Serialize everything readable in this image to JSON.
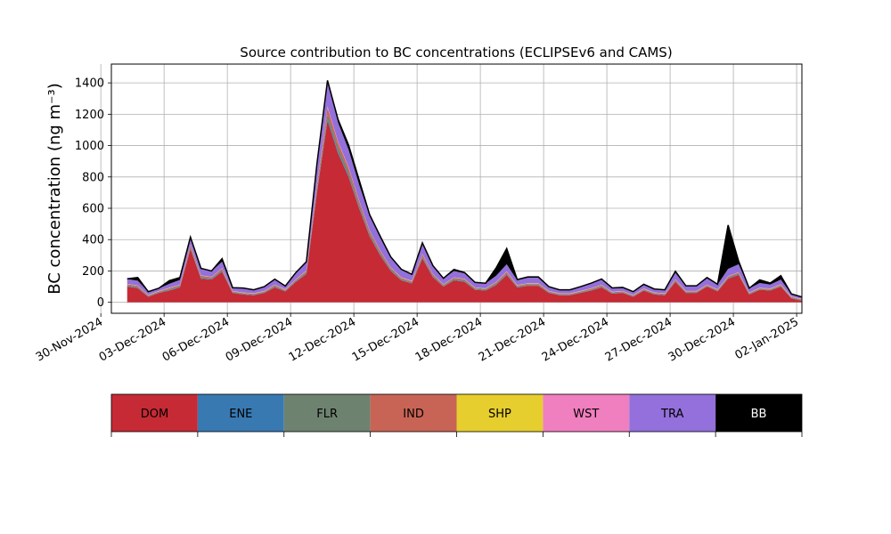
{
  "chart_data": {
    "type": "area",
    "title": "Source contribution to BC concentrations (ECLIPSEv6 and CAMS)",
    "ylabel": "BC concentration (ng m⁻³)",
    "xlabel": "",
    "ylim": [
      -70,
      1520
    ],
    "yticks": [
      0,
      200,
      400,
      600,
      800,
      1000,
      1200,
      1400
    ],
    "xlim": [
      "2024-11-30T12:00",
      "2025-01-02T06:00"
    ],
    "xticks": [
      {
        "date": "2024-11-30",
        "label": "30-Nov-2024"
      },
      {
        "date": "2024-12-03",
        "label": "03-Dec-2024"
      },
      {
        "date": "2024-12-06",
        "label": "06-Dec-2024"
      },
      {
        "date": "2024-12-09",
        "label": "09-Dec-2024"
      },
      {
        "date": "2024-12-12",
        "label": "12-Dec-2024"
      },
      {
        "date": "2024-12-15",
        "label": "15-Dec-2024"
      },
      {
        "date": "2024-12-18",
        "label": "18-Dec-2024"
      },
      {
        "date": "2024-12-21",
        "label": "21-Dec-2024"
      },
      {
        "date": "2024-12-24",
        "label": "24-Dec-2024"
      },
      {
        "date": "2024-12-27",
        "label": "27-Dec-2024"
      },
      {
        "date": "2024-12-30",
        "label": "30-Dec-2024"
      },
      {
        "date": "2025-01-02",
        "label": "02-Jan-2025"
      }
    ],
    "grid": true,
    "legend_position": "bottom",
    "x": [
      "2024-12-01T06:00",
      "2024-12-01T18:00",
      "2024-12-02T06:00",
      "2024-12-02T18:00",
      "2024-12-03T06:00",
      "2024-12-03T18:00",
      "2024-12-04T06:00",
      "2024-12-04T18:00",
      "2024-12-05T06:00",
      "2024-12-05T18:00",
      "2024-12-06T06:00",
      "2024-12-06T18:00",
      "2024-12-07T06:00",
      "2024-12-07T18:00",
      "2024-12-08T06:00",
      "2024-12-08T18:00",
      "2024-12-09T06:00",
      "2024-12-09T18:00",
      "2024-12-10T06:00",
      "2024-12-10T18:00",
      "2024-12-11T06:00",
      "2024-12-11T18:00",
      "2024-12-12T06:00",
      "2024-12-12T18:00",
      "2024-12-13T06:00",
      "2024-12-13T18:00",
      "2024-12-14T06:00",
      "2024-12-14T18:00",
      "2024-12-15T06:00",
      "2024-12-15T18:00",
      "2024-12-16T06:00",
      "2024-12-16T18:00",
      "2024-12-17T06:00",
      "2024-12-17T18:00",
      "2024-12-18T06:00",
      "2024-12-18T18:00",
      "2024-12-19T06:00",
      "2024-12-19T18:00",
      "2024-12-20T06:00",
      "2024-12-20T18:00",
      "2024-12-21T06:00",
      "2024-12-21T18:00",
      "2024-12-22T06:00",
      "2024-12-22T18:00",
      "2024-12-23T06:00",
      "2024-12-23T18:00",
      "2024-12-24T06:00",
      "2024-12-24T18:00",
      "2024-12-25T06:00",
      "2024-12-25T18:00",
      "2024-12-26T06:00",
      "2024-12-26T18:00",
      "2024-12-27T06:00",
      "2024-12-27T18:00",
      "2024-12-28T06:00",
      "2024-12-28T18:00",
      "2024-12-29T06:00",
      "2024-12-29T18:00",
      "2024-12-30T06:00",
      "2024-12-30T18:00",
      "2024-12-31T06:00",
      "2024-12-31T18:00",
      "2025-01-01T06:00",
      "2025-01-01T18:00",
      "2025-01-02T06:00"
    ],
    "series": [
      {
        "name": "DOM",
        "color": "#c62a35",
        "values": [
          100,
          90,
          35,
          60,
          75,
          95,
          340,
          150,
          145,
          195,
          60,
          50,
          45,
          60,
          95,
          70,
          130,
          180,
          700,
          1160,
          950,
          800,
          600,
          420,
          300,
          200,
          140,
          120,
          280,
          160,
          100,
          140,
          130,
          80,
          75,
          110,
          175,
          95,
          105,
          105,
          60,
          45,
          45,
          60,
          75,
          95,
          55,
          60,
          35,
          75,
          50,
          45,
          130,
          60,
          60,
          100,
          70,
          150,
          175,
          50,
          80,
          75,
          100,
          25,
          10
        ]
      },
      {
        "name": "ENE",
        "color": "#3979b2",
        "values": [
          3,
          3,
          2,
          2,
          3,
          3,
          5,
          4,
          3,
          4,
          2,
          2,
          2,
          2,
          3,
          2,
          3,
          4,
          8,
          12,
          10,
          8,
          6,
          5,
          4,
          3,
          2,
          2,
          4,
          3,
          2,
          3,
          3,
          2,
          2,
          3,
          3,
          2,
          2,
          2,
          2,
          2,
          2,
          2,
          2,
          2,
          2,
          2,
          2,
          2,
          2,
          2,
          3,
          2,
          2,
          2,
          2,
          3,
          3,
          2,
          2,
          2,
          2,
          2,
          2
        ]
      },
      {
        "name": "FLR",
        "color": "#6e8270",
        "values": [
          6,
          6,
          4,
          4,
          6,
          6,
          10,
          8,
          6,
          8,
          4,
          4,
          4,
          4,
          6,
          4,
          6,
          8,
          20,
          30,
          30,
          25,
          20,
          15,
          12,
          10,
          8,
          6,
          10,
          8,
          6,
          8,
          8,
          6,
          6,
          8,
          8,
          6,
          6,
          6,
          4,
          4,
          4,
          4,
          5,
          6,
          4,
          4,
          4,
          4,
          4,
          4,
          6,
          4,
          4,
          4,
          4,
          6,
          6,
          4,
          4,
          4,
          5,
          4,
          4
        ]
      },
      {
        "name": "IND",
        "color": "#c86455",
        "values": [
          6,
          6,
          4,
          4,
          6,
          6,
          12,
          8,
          6,
          8,
          4,
          4,
          4,
          4,
          6,
          4,
          6,
          8,
          20,
          40,
          30,
          25,
          20,
          15,
          12,
          8,
          6,
          6,
          12,
          8,
          5,
          6,
          6,
          4,
          4,
          6,
          8,
          4,
          6,
          6,
          4,
          4,
          4,
          4,
          5,
          6,
          4,
          4,
          4,
          4,
          4,
          4,
          6,
          4,
          4,
          4,
          4,
          6,
          6,
          4,
          4,
          4,
          5,
          3,
          3
        ]
      },
      {
        "name": "SHP",
        "color": "#e6ce2e",
        "values": [
          1,
          1,
          1,
          1,
          1,
          1,
          1,
          1,
          1,
          1,
          1,
          1,
          1,
          1,
          1,
          1,
          1,
          1,
          1,
          1,
          1,
          1,
          1,
          1,
          1,
          1,
          1,
          1,
          1,
          1,
          1,
          1,
          1,
          1,
          1,
          1,
          1,
          1,
          1,
          1,
          1,
          1,
          1,
          1,
          1,
          1,
          1,
          1,
          1,
          1,
          1,
          1,
          1,
          1,
          1,
          1,
          1,
          1,
          1,
          1,
          1,
          1,
          1,
          1,
          1
        ]
      },
      {
        "name": "WST",
        "color": "#f07fbf",
        "values": [
          2,
          2,
          2,
          2,
          2,
          2,
          3,
          2,
          2,
          3,
          2,
          2,
          2,
          2,
          2,
          2,
          2,
          3,
          6,
          8,
          6,
          5,
          4,
          3,
          3,
          2,
          2,
          2,
          3,
          2,
          2,
          2,
          2,
          2,
          2,
          2,
          3,
          2,
          2,
          2,
          2,
          2,
          2,
          2,
          2,
          2,
          2,
          2,
          2,
          2,
          2,
          2,
          2,
          2,
          2,
          2,
          2,
          2,
          2,
          2,
          2,
          2,
          2,
          2,
          2
        ]
      },
      {
        "name": "TRA",
        "color": "#9370db",
        "values": [
          30,
          30,
          18,
          15,
          25,
          30,
          40,
          40,
          35,
          40,
          18,
          25,
          20,
          25,
          30,
          20,
          40,
          50,
          120,
          150,
          120,
          110,
          100,
          90,
          80,
          60,
          50,
          40,
          60,
          50,
          35,
          40,
          35,
          30,
          30,
          40,
          45,
          30,
          35,
          35,
          25,
          20,
          20,
          25,
          30,
          35,
          22,
          20,
          18,
          25,
          20,
          20,
          40,
          30,
          30,
          40,
          30,
          45,
          50,
          25,
          30,
          25,
          30,
          15,
          10
        ]
      },
      {
        "name": "BB",
        "color": "#000000",
        "values": [
          2,
          20,
          2,
          2,
          20,
          15,
          5,
          4,
          2,
          20,
          2,
          3,
          2,
          2,
          5,
          1,
          2,
          5,
          10,
          15,
          20,
          30,
          30,
          10,
          10,
          6,
          2,
          2,
          10,
          2,
          2,
          10,
          5,
          2,
          2,
          50,
          100,
          5,
          5,
          5,
          2,
          2,
          2,
          2,
          2,
          2,
          2,
          2,
          2,
          2,
          2,
          2,
          10,
          2,
          2,
          5,
          2,
          280,
          20,
          2,
          20,
          10,
          25,
          2,
          2
        ]
      }
    ]
  }
}
